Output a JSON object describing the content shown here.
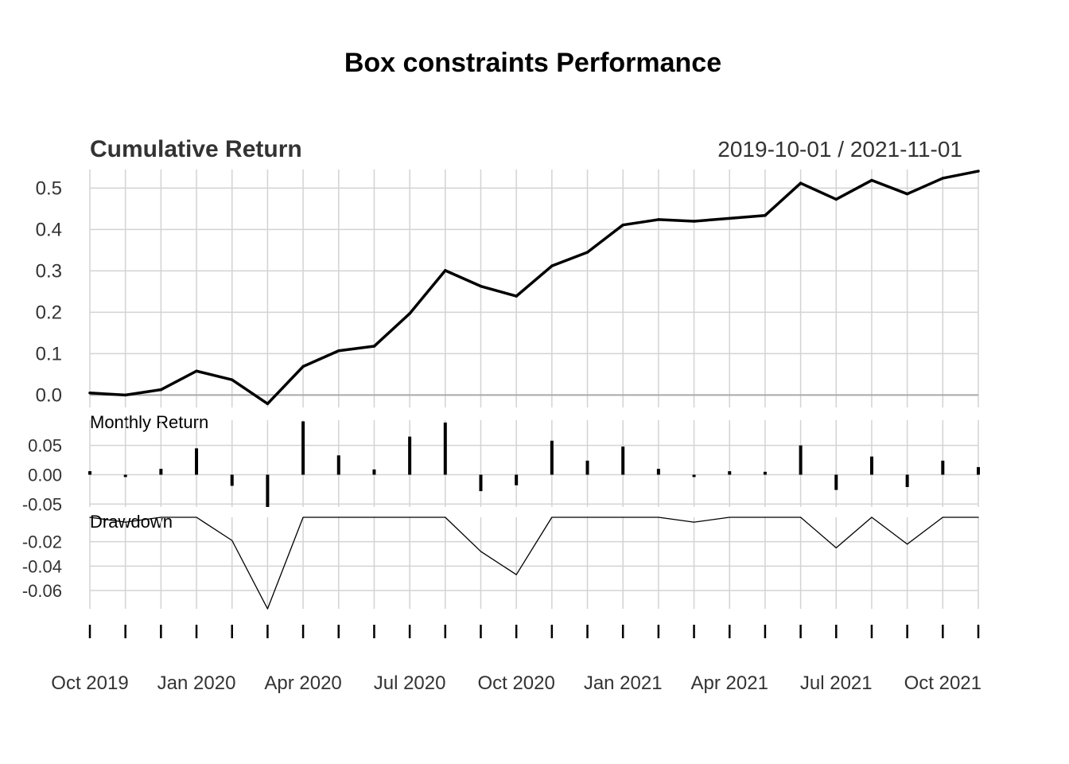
{
  "title": "Box constraints Performance",
  "colors": {
    "background": "#ffffff",
    "grid": "#d3d3d3",
    "line": "#000000",
    "text": "#333333",
    "zero_line": "#a9a9a9"
  },
  "chart_data": [
    {
      "type": "line",
      "panel": "cumulative",
      "title": "Cumulative Return",
      "subtitle": "2019-10-01 / 2021-11-01",
      "x": [
        "2019-10-01",
        "2019-11-01",
        "2019-12-01",
        "2020-01-01",
        "2020-02-01",
        "2020-03-01",
        "2020-04-01",
        "2020-05-01",
        "2020-06-01",
        "2020-07-01",
        "2020-08-01",
        "2020-09-01",
        "2020-10-01",
        "2020-11-01",
        "2020-12-01",
        "2021-01-01",
        "2021-02-01",
        "2021-03-01",
        "2021-04-01",
        "2021-05-01",
        "2021-06-01",
        "2021-07-01",
        "2021-08-01",
        "2021-09-01",
        "2021-10-01",
        "2021-11-01"
      ],
      "values": [
        0.005,
        0.0,
        0.013,
        0.058,
        0.037,
        -0.021,
        0.069,
        0.107,
        0.118,
        0.197,
        0.301,
        0.263,
        0.239,
        0.312,
        0.345,
        0.411,
        0.424,
        0.42,
        0.427,
        0.434,
        0.512,
        0.473,
        0.519,
        0.486,
        0.524,
        0.541
      ],
      "yticks": [
        0.0,
        0.1,
        0.2,
        0.3,
        0.4,
        0.5
      ],
      "ytick_labels": [
        "0.0",
        "0.1",
        "0.2",
        "0.3",
        "0.4",
        "0.5"
      ],
      "ylim": [
        -0.03,
        0.545
      ],
      "grid": true
    },
    {
      "type": "bar",
      "panel": "monthly",
      "title": "Monthly Return",
      "x": [
        "2019-10-01",
        "2019-11-01",
        "2019-12-01",
        "2020-01-01",
        "2020-02-01",
        "2020-03-01",
        "2020-04-01",
        "2020-05-01",
        "2020-06-01",
        "2020-07-01",
        "2020-08-01",
        "2020-09-01",
        "2020-10-01",
        "2020-11-01",
        "2020-12-01",
        "2021-01-01",
        "2021-02-01",
        "2021-03-01",
        "2021-04-01",
        "2021-05-01",
        "2021-06-01",
        "2021-07-01",
        "2021-08-01",
        "2021-09-01",
        "2021-10-01",
        "2021-11-01"
      ],
      "values": [
        0.006,
        -0.004,
        0.01,
        0.045,
        -0.019,
        -0.055,
        0.091,
        0.033,
        0.009,
        0.065,
        0.089,
        -0.028,
        -0.018,
        0.058,
        0.024,
        0.048,
        0.01,
        -0.004,
        0.006,
        0.005,
        0.05,
        -0.026,
        0.031,
        -0.021,
        0.024,
        0.013
      ],
      "yticks": [
        -0.05,
        0.0,
        0.05
      ],
      "ytick_labels": [
        "-0.05",
        "0.00",
        "0.05"
      ],
      "ylim": [
        -0.055,
        0.093
      ],
      "grid": true
    },
    {
      "type": "line",
      "panel": "drawdown",
      "title": "Drawdown",
      "x": [
        "2019-10-01",
        "2019-11-01",
        "2019-12-01",
        "2020-01-01",
        "2020-02-01",
        "2020-03-01",
        "2020-04-01",
        "2020-05-01",
        "2020-06-01",
        "2020-07-01",
        "2020-08-01",
        "2020-09-01",
        "2020-10-01",
        "2020-11-01",
        "2020-12-01",
        "2021-01-01",
        "2021-02-01",
        "2021-03-01",
        "2021-04-01",
        "2021-05-01",
        "2021-06-01",
        "2021-07-01",
        "2021-08-01",
        "2021-09-01",
        "2021-10-01",
        "2021-11-01"
      ],
      "values": [
        0.0,
        -0.004,
        0.0,
        0.0,
        -0.019,
        -0.075,
        0.0,
        0.0,
        0.0,
        0.0,
        0.0,
        -0.028,
        -0.047,
        0.0,
        0.0,
        0.0,
        0.0,
        -0.004,
        0.0,
        0.0,
        0.0,
        -0.025,
        0.0,
        -0.022,
        0.0,
        0.0
      ],
      "yticks": [
        -0.02,
        -0.04,
        -0.06
      ],
      "ytick_labels": [
        "-0.02",
        "-0.04",
        "-0.06"
      ],
      "ylim": [
        -0.075,
        0.0
      ],
      "grid": true
    }
  ],
  "x_axis": {
    "tick_labels": [
      "Oct 2019",
      "Jan 2020",
      "Apr 2020",
      "Jul 2020",
      "Oct 2020",
      "Jan 2021",
      "Apr 2021",
      "Jul 2021",
      "Oct 2021"
    ],
    "tick_dates": [
      "2019-10-01",
      "2020-01-01",
      "2020-04-01",
      "2020-07-01",
      "2020-10-01",
      "2021-01-01",
      "2021-04-01",
      "2021-07-01",
      "2021-10-01"
    ]
  }
}
